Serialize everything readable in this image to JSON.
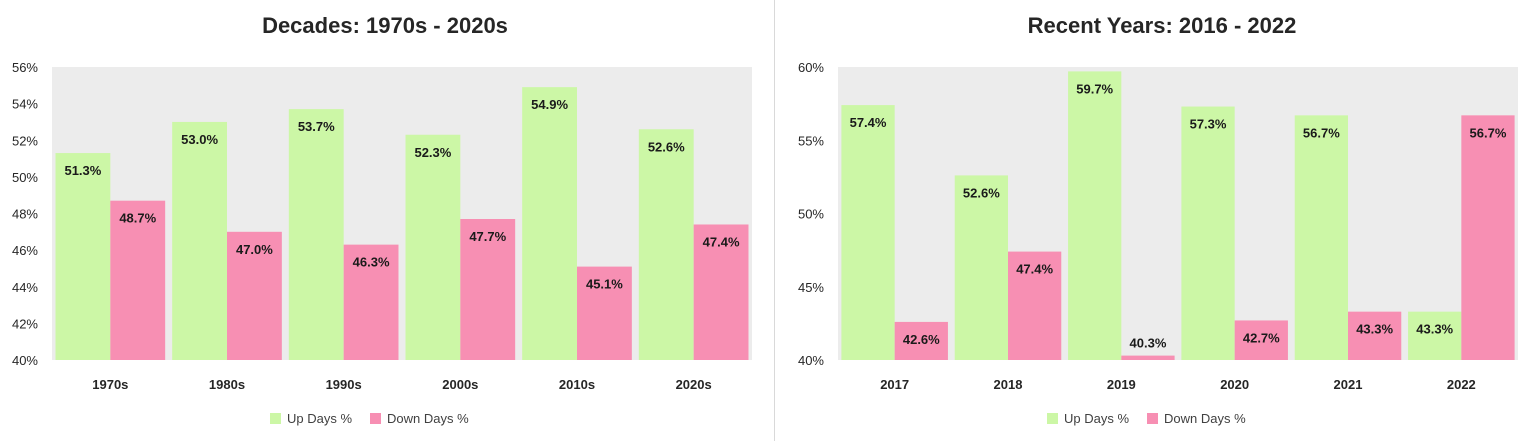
{
  "chart_data": [
    {
      "type": "bar",
      "title": "Decades: 1970s - 2020s",
      "categories": [
        "1970s",
        "1980s",
        "1990s",
        "2000s",
        "2010s",
        "2020s"
      ],
      "series": [
        {
          "name": "Up Days %",
          "values": [
            51.3,
            53.0,
            53.7,
            52.3,
            54.9,
            52.6
          ],
          "labels": [
            "51.3%",
            "53.0%",
            "53.7%",
            "52.3%",
            "54.9%",
            "52.6%"
          ]
        },
        {
          "name": "Down Days %",
          "values": [
            48.7,
            47.0,
            46.3,
            47.7,
            45.1,
            47.4
          ],
          "labels": [
            "48.7%",
            "47.0%",
            "46.3%",
            "47.7%",
            "45.1%",
            "47.4%"
          ]
        }
      ],
      "ylim": [
        40,
        56
      ],
      "yticks": [
        40,
        42,
        44,
        46,
        48,
        50,
        52,
        54,
        56
      ],
      "ytick_labels": [
        "40%",
        "42%",
        "44%",
        "46%",
        "48%",
        "50%",
        "52%",
        "54%",
        "56%"
      ],
      "legend": "bottom",
      "grid": false
    },
    {
      "type": "bar",
      "title": "Recent Years: 2016 - 2022",
      "categories": [
        "2017",
        "2018",
        "2019",
        "2020",
        "2021",
        "2022"
      ],
      "series": [
        {
          "name": "Up Days %",
          "values": [
            57.4,
            52.6,
            59.7,
            57.3,
            56.7,
            43.3
          ],
          "labels": [
            "57.4%",
            "52.6%",
            "59.7%",
            "57.3%",
            "56.7%",
            "43.3%"
          ]
        },
        {
          "name": "Down Days %",
          "values": [
            42.6,
            47.4,
            40.3,
            42.7,
            43.3,
            56.7
          ],
          "labels": [
            "42.6%",
            "47.4%",
            "40.3%",
            "42.7%",
            "43.3%",
            "56.7%"
          ]
        }
      ],
      "ylim": [
        40,
        60
      ],
      "yticks": [
        40,
        45,
        50,
        55,
        60
      ],
      "ytick_labels": [
        "40%",
        "45%",
        "50%",
        "55%",
        "60%"
      ],
      "legend": "bottom",
      "grid": false
    }
  ],
  "colors": {
    "up": "#ccf7a6",
    "down": "#f78fb3",
    "plot_bg": "#ececec",
    "text": "#262626"
  }
}
